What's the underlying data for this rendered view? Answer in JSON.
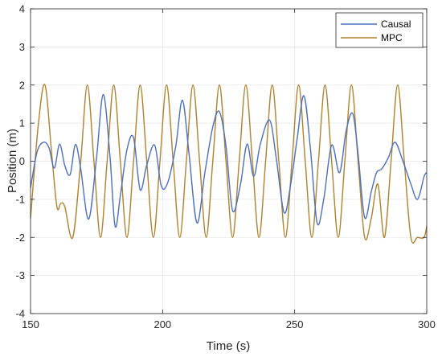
{
  "chart_data": {
    "type": "line",
    "title": "",
    "xlabel": "Time (s)",
    "ylabel": "Position (m)",
    "xlim": [
      150,
      300
    ],
    "ylim": [
      -4,
      4
    ],
    "xticks": [
      150,
      200,
      250,
      300
    ],
    "yticks": [
      -4,
      -3,
      -2,
      -1,
      0,
      1,
      2,
      3,
      4
    ],
    "grid": true,
    "legend_position": "top-right",
    "series": [
      {
        "name": "Causal",
        "color": "#4c6fbf",
        "x": [
          150,
          152.5,
          155,
          157,
          159,
          161,
          163,
          165,
          167,
          169,
          172,
          175,
          177.5,
          180,
          182,
          184,
          186.5,
          189,
          191.5,
          194,
          197,
          199.5,
          202,
          205,
          207.5,
          210,
          213,
          216,
          219,
          221.5,
          224,
          226.5,
          229.5,
          232,
          234.5,
          237,
          240.5,
          243,
          246,
          248.5,
          251,
          253.5,
          256,
          258.5,
          261,
          264,
          267,
          269.5,
          272,
          274,
          276.5,
          279,
          281,
          283,
          285.5,
          288,
          291,
          294,
          296.5,
          299,
          300
        ],
        "y": [
          -0.7,
          0.25,
          0.5,
          0.35,
          -0.18,
          0.45,
          -0.12,
          -0.35,
          0.44,
          -0.2,
          -1.52,
          0.1,
          1.75,
          0.2,
          -1.7,
          -0.9,
          0.3,
          0.62,
          -0.75,
          -0.1,
          0.42,
          -0.65,
          -0.55,
          0.4,
          1.6,
          0.2,
          -1.62,
          -0.3,
          0.9,
          1.3,
          0.4,
          -1.3,
          -0.6,
          0.45,
          -0.4,
          0.45,
          1.08,
          0.1,
          -1.35,
          -0.6,
          0.62,
          1.72,
          0.3,
          -1.62,
          -1.0,
          0.42,
          -0.3,
          0.8,
          1.25,
          0.2,
          -1.48,
          -0.8,
          -0.3,
          -0.2,
          0.1,
          0.5,
          0.0,
          -0.6,
          -1.0,
          -0.4,
          -0.3
        ]
      },
      {
        "name": "MPC",
        "color": "#b0822e",
        "x": [
          150,
          153,
          155.5,
          158,
          160,
          161.5,
          163,
          166,
          169,
          171.5,
          174,
          176.5,
          179,
          181.5,
          184,
          186.5,
          189,
          191.5,
          194,
          196.5,
          199,
          201.5,
          204,
          206.5,
          209,
          211.5,
          214,
          216.5,
          219,
          221.5,
          224,
          226.5,
          229,
          231.5,
          234,
          236.5,
          239,
          241.5,
          244,
          246.5,
          249,
          251.5,
          254,
          256.5,
          259,
          261.5,
          264,
          266.5,
          269,
          271.5,
          274,
          276.5,
          279,
          281.5,
          284,
          286.5,
          289,
          291.5,
          294,
          296.5,
          299,
          300
        ],
        "y": [
          -1.5,
          1.0,
          2.0,
          0.2,
          -1.2,
          -1.1,
          -1.2,
          -2.0,
          0.0,
          2.0,
          0.0,
          -2.0,
          0.0,
          2.0,
          0.0,
          -2.0,
          0.0,
          2.0,
          0.0,
          -2.0,
          0.0,
          2.0,
          0.0,
          -2.0,
          0.0,
          2.0,
          0.0,
          -2.0,
          0.0,
          2.0,
          0.0,
          -2.0,
          0.0,
          2.0,
          0.0,
          -2.0,
          0.0,
          2.0,
          0.0,
          -2.0,
          0.0,
          2.0,
          0.0,
          -2.0,
          0.0,
          2.0,
          0.0,
          -2.0,
          0.0,
          2.0,
          0.0,
          -2.0,
          -1.5,
          -0.6,
          -2.0,
          0.0,
          2.0,
          0.0,
          -2.0,
          -2.0,
          -2.0,
          -1.7
        ]
      }
    ]
  }
}
